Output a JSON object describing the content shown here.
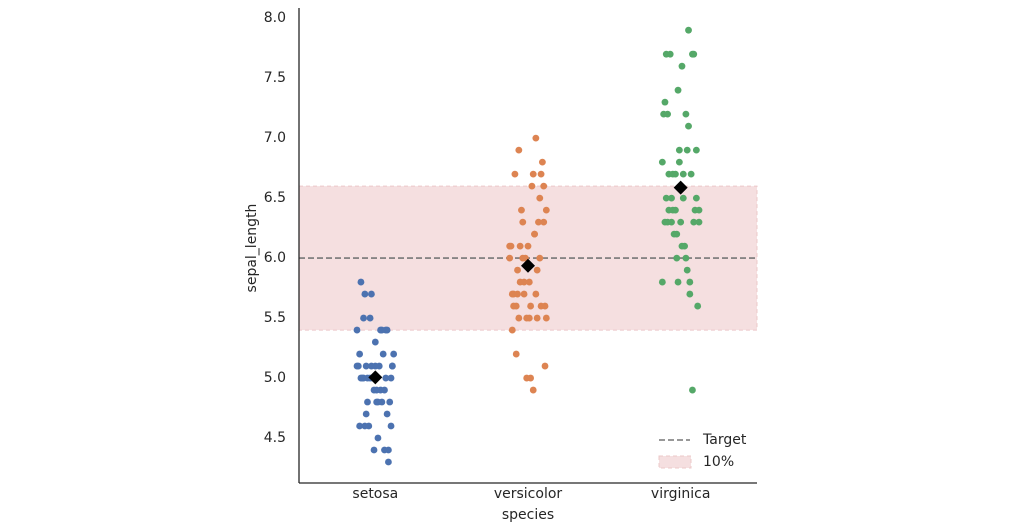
{
  "chart_data": {
    "type": "strip",
    "xlabel": "species",
    "ylabel": "sepal_length",
    "categories": [
      "setosa",
      "versicolor",
      "virginica"
    ],
    "colors": [
      "#4c72b0",
      "#dd8452",
      "#55a868"
    ],
    "values": [
      [
        5.1,
        4.9,
        4.7,
        4.6,
        5.0,
        5.4,
        4.6,
        5.0,
        4.4,
        4.9,
        5.4,
        4.8,
        4.8,
        4.3,
        5.8,
        5.7,
        5.4,
        5.1,
        5.7,
        5.1,
        5.4,
        5.1,
        4.6,
        5.1,
        4.8,
        5.0,
        5.0,
        5.2,
        5.2,
        4.7,
        4.8,
        5.4,
        5.2,
        5.5,
        4.9,
        5.0,
        5.5,
        4.9,
        4.4,
        5.1,
        5.0,
        4.5,
        4.4,
        5.0,
        5.1,
        4.8,
        5.1,
        4.6,
        5.3,
        5.0
      ],
      [
        7.0,
        6.4,
        6.9,
        5.5,
        6.5,
        5.7,
        6.3,
        4.9,
        6.6,
        5.2,
        5.0,
        5.9,
        6.0,
        6.1,
        5.6,
        6.7,
        5.6,
        5.8,
        6.2,
        5.6,
        5.9,
        6.1,
        6.3,
        6.1,
        6.4,
        6.6,
        6.8,
        6.7,
        6.0,
        5.7,
        5.5,
        5.5,
        5.8,
        6.0,
        5.4,
        6.0,
        6.7,
        6.3,
        5.6,
        5.5,
        5.5,
        6.1,
        5.8,
        5.0,
        5.6,
        5.7,
        5.7,
        6.2,
        5.1,
        5.7
      ],
      [
        6.3,
        5.8,
        7.1,
        6.3,
        6.5,
        7.6,
        4.9,
        7.3,
        6.7,
        7.2,
        6.5,
        6.4,
        6.8,
        5.7,
        5.8,
        6.4,
        6.5,
        7.7,
        7.7,
        6.0,
        6.9,
        5.6,
        7.7,
        6.3,
        6.7,
        7.2,
        6.2,
        6.1,
        6.4,
        7.2,
        7.4,
        7.9,
        6.4,
        6.3,
        6.1,
        7.7,
        6.3,
        6.4,
        6.0,
        6.9,
        6.7,
        6.9,
        5.8,
        6.8,
        6.7,
        6.7,
        6.3,
        6.5,
        6.2,
        5.9
      ]
    ],
    "means": [
      5.006,
      5.936,
      6.588
    ],
    "mean_color": "#000000",
    "target": {
      "label": "Target",
      "value": 6.0,
      "color": "#777777"
    },
    "band": {
      "label": "10%",
      "range": [
        5.4,
        6.6
      ],
      "color": "#f5dfe0"
    },
    "ylim": [
      4.125,
      8.085
    ],
    "yticks": [
      {
        "value": 4.5,
        "label": "4.5"
      },
      {
        "value": 5.0,
        "label": "5.0"
      },
      {
        "value": 5.5,
        "label": "5.5"
      },
      {
        "value": 6.0,
        "label": "6.0"
      },
      {
        "value": 6.5,
        "label": "6.5"
      },
      {
        "value": 7.0,
        "label": "7.0"
      },
      {
        "value": 7.5,
        "label": "7.5"
      },
      {
        "value": 8.0,
        "label": "8.0"
      }
    ],
    "legend": "lower right"
  }
}
